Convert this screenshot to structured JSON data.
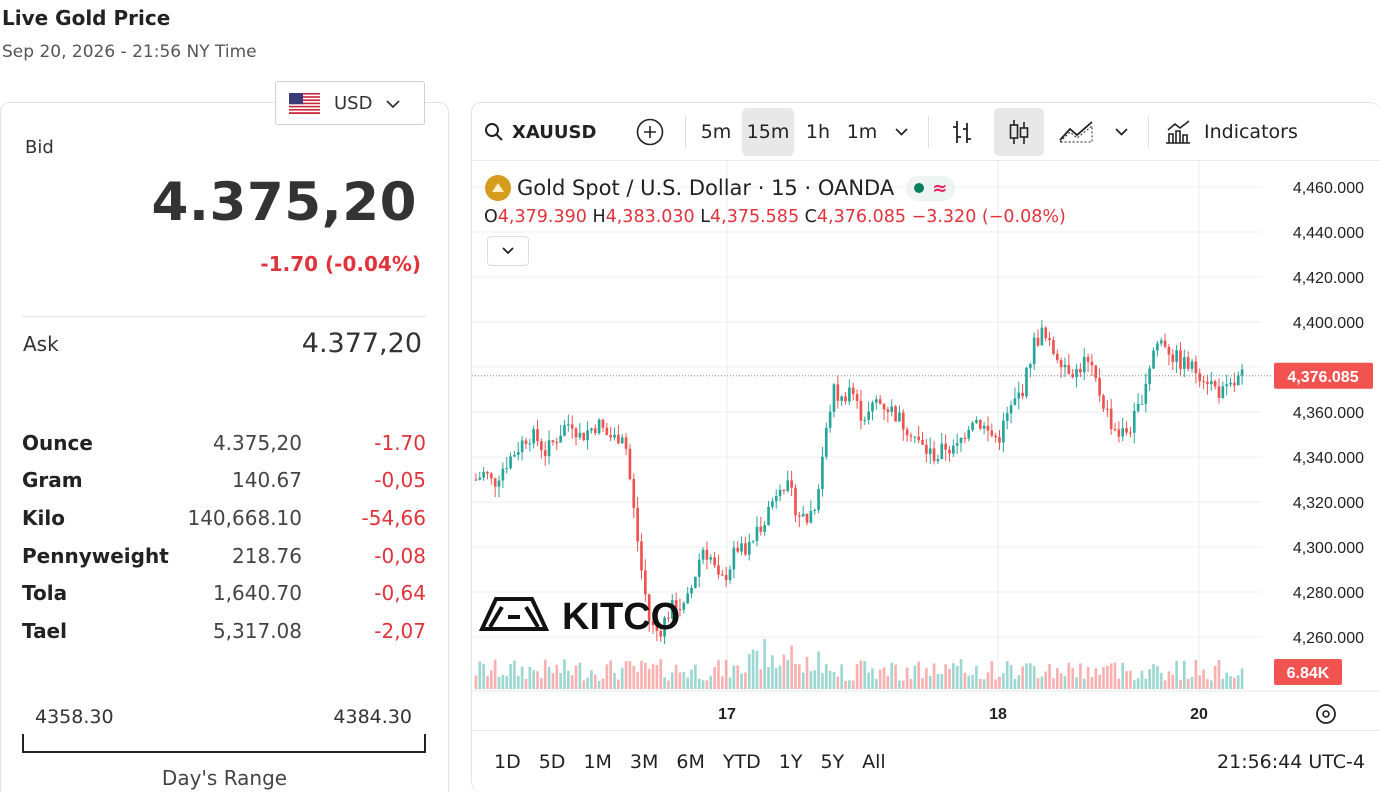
{
  "header": {
    "title": "Live Gold Price",
    "subtitle": "Sep 20, 2026 - 21:56 NY Time"
  },
  "currency": {
    "selected": "USD",
    "flag_icon": "us-flag-icon"
  },
  "quote": {
    "bid_label": "Bid",
    "bid": "4.375,20",
    "bid_change": "-1.70 (-0.04%)",
    "ask_label": "Ask",
    "ask": "4.377,20"
  },
  "units": [
    {
      "unit": "Ounce",
      "price": "4.375,20",
      "change": "-1.70"
    },
    {
      "unit": "Gram",
      "price": "140.67",
      "change": "-0,05"
    },
    {
      "unit": "Kilo",
      "price": "140,668.10",
      "change": "-54,66"
    },
    {
      "unit": "Pennyweight",
      "price": "218.76",
      "change": "-0,08"
    },
    {
      "unit": "Tola",
      "price": "1,640.70",
      "change": "-0,64"
    },
    {
      "unit": "Tael",
      "price": "5,317.08",
      "change": "-2,07"
    }
  ],
  "day_range": {
    "low": "4358.30",
    "high": "4384.30",
    "label": "Day's Range"
  },
  "toolbar": {
    "symbol": "XAUUSD",
    "intervals": [
      "5m",
      "15m",
      "1h",
      "1m"
    ],
    "active_interval": "15m",
    "indicators_label": "Indicators"
  },
  "legend": {
    "name": "Gold Spot / U.S. Dollar · 15 · OANDA",
    "o_key": "O",
    "o": "4,379.390",
    "h_key": "H",
    "h": "4,383.030",
    "l_key": "L",
    "l": "4,375.585",
    "c_key": "C",
    "c": "4,376.085",
    "change": "−3.320 (−0.08%)"
  },
  "watermark": "KITCO",
  "ranges": [
    "1D",
    "5D",
    "1M",
    "3M",
    "6M",
    "YTD",
    "1Y",
    "5Y",
    "All"
  ],
  "clock": "21:56:44 UTC-4",
  "colors": {
    "up": "#26a69a",
    "down": "#ef5350",
    "price_tag": "#f05350",
    "change": "#e0333b"
  },
  "chart_data": {
    "type": "candlestick",
    "y_ticks": [
      "4,460.000",
      "4,440.000",
      "4,420.000",
      "4,400.000",
      "4,360.000",
      "4,340.000",
      "4,320.000",
      "4,300.000",
      "4,280.000",
      "4,260.000"
    ],
    "x_ticks": [
      "17",
      "18",
      "20"
    ],
    "ylim": [
      4253,
      4463
    ],
    "last_price": "4,376.085",
    "last_price_value": 4376.085,
    "volume_label": "6.84K",
    "close_path": [
      4330,
      4333,
      4328,
      4335,
      4340,
      4345,
      4350,
      4348,
      4342,
      4347,
      4353,
      4356,
      4349,
      4352,
      4355,
      4350,
      4348,
      4352,
      4320,
      4290,
      4265,
      4262,
      4270,
      4275,
      4272,
      4285,
      4300,
      4295,
      4283,
      4290,
      4300,
      4296,
      4305,
      4312,
      4320,
      4330,
      4325,
      4315,
      4312,
      4320,
      4345,
      4370,
      4365,
      4372,
      4360,
      4358,
      4365,
      4363,
      4360,
      4355,
      4352,
      4345,
      4342,
      4340,
      4345,
      4342,
      4350,
      4358,
      4355,
      4350,
      4348,
      4358,
      4365,
      4372,
      4390,
      4395,
      4388,
      4385,
      4380,
      4378,
      4383,
      4375,
      4365,
      4355,
      4350,
      4352,
      4360,
      4375,
      4390,
      4392,
      4385,
      4382,
      4380,
      4378,
      4375,
      4370,
      4368,
      4372,
      4376
    ]
  }
}
